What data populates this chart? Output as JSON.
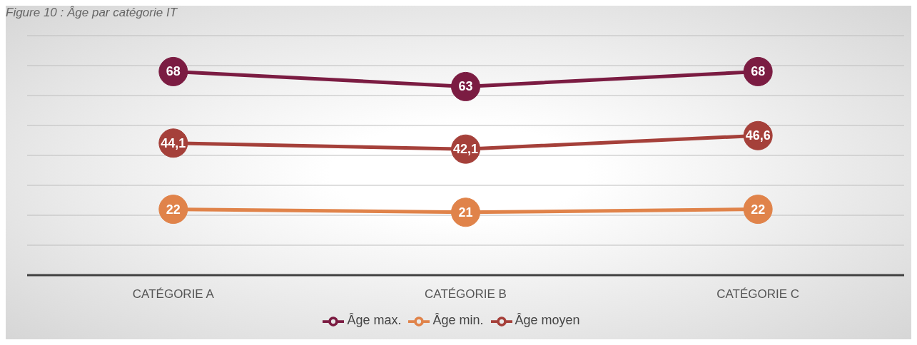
{
  "chart_data": {
    "type": "line",
    "title": "Figure 10 : Âge par catégorie IT",
    "categories": [
      "CATÉGORIE A",
      "CATÉGORIE B",
      "CATÉGORIE C"
    ],
    "series": [
      {
        "name": "Âge max.",
        "color": "#7b1c42",
        "values": [
          68,
          63,
          68
        ],
        "value_labels": [
          "68",
          "63",
          "68"
        ]
      },
      {
        "name": "Âge moyen",
        "color": "#a5403a",
        "values": [
          44.1,
          42.1,
          46.6
        ],
        "value_labels": [
          "44,1",
          "42,1",
          "46,6"
        ]
      },
      {
        "name": "Âge min.",
        "color": "#e0834a",
        "values": [
          22,
          21,
          22
        ],
        "value_labels": [
          "22",
          "21",
          "22"
        ]
      }
    ],
    "ylim": [
      0,
      80
    ],
    "yticks": [
      {
        "value": 0,
        "label": null
      },
      {
        "value": 10,
        "label": null
      },
      {
        "value": 20,
        "label": null
      },
      {
        "value": 30,
        "label": null
      },
      {
        "value": 40,
        "label": null
      },
      {
        "value": 50,
        "label": null
      },
      {
        "value": 60,
        "label": null
      },
      {
        "value": 70,
        "label": null
      },
      {
        "value": 80,
        "label": null
      }
    ],
    "tick_labels": "x",
    "grid": "y",
    "legend": "bottom",
    "marker": "circle",
    "line_style": "solid"
  }
}
